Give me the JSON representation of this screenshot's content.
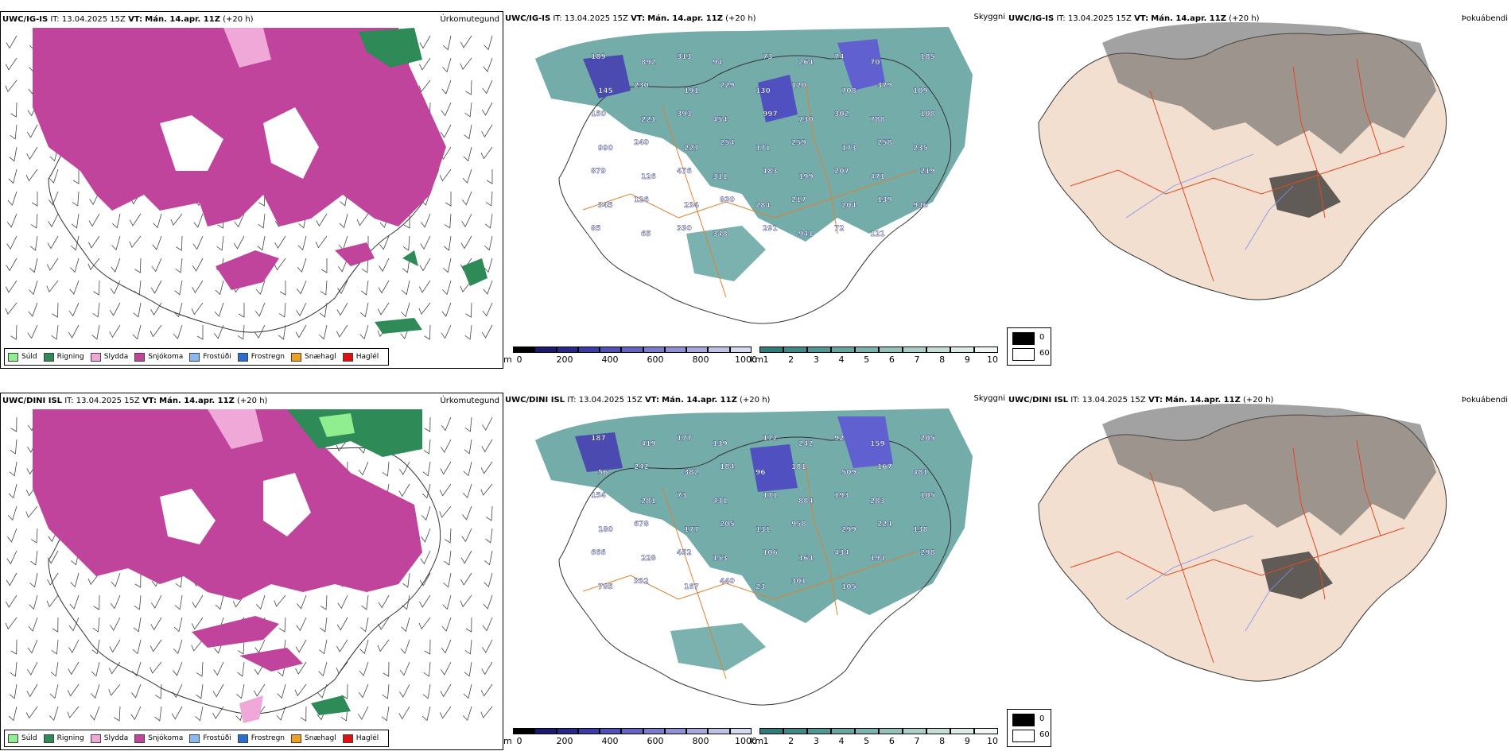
{
  "rows": [
    {
      "model": "UWC/IG-IS",
      "it_label": "IT:",
      "it_value": "13.04.2025 15Z",
      "vt_label": "VT:",
      "vt_value": "Mán. 14.apr. 11Z",
      "lead": "(+20 h)",
      "precip_title": "Úrkomutegund",
      "vis_title": "Skyggni",
      "fog_title": "Þokuábendi",
      "summit_labels": [
        "189",
        "892",
        "313",
        "94",
        "73",
        "264",
        "74",
        "70",
        "185",
        "145",
        "230",
        "191",
        "229",
        "130",
        "120",
        "708",
        "379",
        "109",
        "150",
        "221",
        "393",
        "454",
        "997",
        "730",
        "302",
        "788",
        "108",
        "990",
        "240",
        "227",
        "254",
        "171",
        "259",
        "173",
        "258",
        "235",
        "879",
        "126",
        "476",
        "311",
        "183",
        "199",
        "207",
        "471",
        "219",
        "345",
        "126",
        "234",
        "830",
        "284",
        "217",
        "204",
        "139",
        "946",
        "85",
        "65",
        "330",
        "348",
        "291",
        "941",
        "72",
        "121"
      ]
    },
    {
      "model": "UWC/DINI ISL",
      "it_label": "IT:",
      "it_value": "13.04.2025 15Z",
      "vt_label": "VT:",
      "vt_value": "Mán. 14.apr. 11Z",
      "lead": "(+20 h)",
      "precip_title": "Úrkomutegund",
      "vis_title": "Skyggni",
      "fog_title": "Þokuábendi",
      "summit_labels": [
        "187",
        "419",
        "177",
        "139",
        "172",
        "242",
        "92",
        "159",
        "205",
        "56",
        "242",
        "382",
        "184",
        "96",
        "181",
        "509",
        "167",
        "481",
        "154",
        "281",
        "73",
        "431",
        "171",
        "884",
        "193",
        "283",
        "105",
        "180",
        "678",
        "177",
        "205",
        "131",
        "958",
        "299",
        "224",
        "138",
        "666",
        "228",
        "452",
        "153",
        "106",
        "164",
        "434",
        "194",
        "298",
        "785",
        "332",
        "167",
        "440",
        "23",
        "301",
        "105"
      ]
    }
  ],
  "precip_legend": [
    {
      "label": "Súld",
      "color": "#90ee90"
    },
    {
      "label": "Rigning",
      "color": "#2e8b57"
    },
    {
      "label": "Slydda",
      "color": "#f0a8d8"
    },
    {
      "label": "Snjókoma",
      "color": "#c0449c"
    },
    {
      "label": "Frostúði",
      "color": "#8ab8f0"
    },
    {
      "label": "Frostregn",
      "color": "#2a6fd0"
    },
    {
      "label": "Snæhagl",
      "color": "#f0a020"
    },
    {
      "label": "Haglél",
      "color": "#e01010"
    }
  ],
  "height_bar": {
    "unit": "m",
    "ticks": [
      "0",
      "200",
      "400",
      "600",
      "800",
      "1000"
    ],
    "colors": [
      "#000000",
      "#1a1a70",
      "#26268c",
      "#3a3aa8",
      "#5050b8",
      "#6464c4",
      "#7a7ad0",
      "#9090d8",
      "#a8a8e0",
      "#c0c0ea",
      "#d8d8f4"
    ]
  },
  "vis_bar": {
    "unit": "km",
    "ticks": [
      "1",
      "2",
      "3",
      "4",
      "5",
      "6",
      "7",
      "8",
      "9",
      "10"
    ],
    "colors": [
      "#2e7d7d",
      "#3d8a88",
      "#4f9894",
      "#64a6a0",
      "#7ab4ad",
      "#92c2ba",
      "#aad0c8",
      "#c2ded6",
      "#daece5",
      "#f0f8f4"
    ]
  },
  "fog_legend": [
    {
      "value": "0",
      "color": "#000000"
    },
    {
      "value": "60",
      "color": "#ffffff"
    }
  ]
}
